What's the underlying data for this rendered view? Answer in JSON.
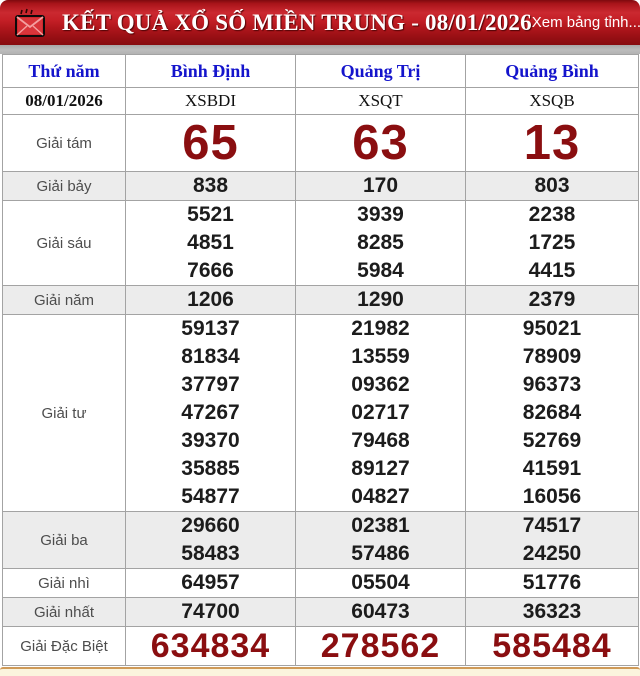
{
  "header": {
    "title": "KẾT QUẢ XỔ SỐ MIỀN TRUNG - 08/01/2026",
    "view_link_label": "Xem bảng tỉnh...",
    "icons": {
      "left": "mail-icon",
      "right": "bar-chart-icon"
    }
  },
  "table": {
    "day_label": "Thứ năm",
    "date": "08/01/2026",
    "provinces": [
      {
        "name": "Bình Định",
        "code": "XSBDI"
      },
      {
        "name": "Quảng Trị",
        "code": "XSQT"
      },
      {
        "name": "Quảng Bình",
        "code": "XSQB"
      }
    ],
    "prizes": [
      {
        "label": "Giải tám",
        "style": "big-red",
        "shaded": false,
        "values": [
          [
            "65"
          ],
          [
            "63"
          ],
          [
            "13"
          ]
        ]
      },
      {
        "label": "Giải bảy",
        "style": "",
        "shaded": true,
        "values": [
          [
            "838"
          ],
          [
            "170"
          ],
          [
            "803"
          ]
        ]
      },
      {
        "label": "Giải sáu",
        "style": "",
        "shaded": false,
        "values": [
          [
            "5521",
            "4851",
            "7666"
          ],
          [
            "3939",
            "8285",
            "5984"
          ],
          [
            "2238",
            "1725",
            "4415"
          ]
        ]
      },
      {
        "label": "Giải năm",
        "style": "",
        "shaded": true,
        "values": [
          [
            "1206"
          ],
          [
            "1290"
          ],
          [
            "2379"
          ]
        ]
      },
      {
        "label": "Giải tư",
        "style": "",
        "shaded": false,
        "values": [
          [
            "59137",
            "81834",
            "37797",
            "47267",
            "39370",
            "35885",
            "54877"
          ],
          [
            "21982",
            "13559",
            "09362",
            "02717",
            "79468",
            "89127",
            "04827"
          ],
          [
            "95021",
            "78909",
            "96373",
            "82684",
            "52769",
            "41591",
            "16056"
          ]
        ]
      },
      {
        "label": "Giải ba",
        "style": "",
        "shaded": true,
        "values": [
          [
            "29660",
            "58483"
          ],
          [
            "02381",
            "57486"
          ],
          [
            "74517",
            "24250"
          ]
        ]
      },
      {
        "label": "Giải nhì",
        "style": "",
        "shaded": false,
        "values": [
          [
            "64957"
          ],
          [
            "05504"
          ],
          [
            "51776"
          ]
        ]
      },
      {
        "label": "Giải nhất",
        "style": "",
        "shaded": true,
        "values": [
          [
            "74700"
          ],
          [
            "60473"
          ],
          [
            "36323"
          ]
        ]
      },
      {
        "label": "Giải Đặc Biệt",
        "style": "special-red",
        "shaded": false,
        "values": [
          [
            "634834"
          ],
          [
            "278562"
          ],
          [
            "585484"
          ]
        ]
      }
    ]
  },
  "colors": {
    "header_red": "#b4161c",
    "accent_maroon": "#8a0e10",
    "link_blue": "#1414cc",
    "shaded_row": "#ececec",
    "strip_cream": "#fbf4dd",
    "strip_border_tan": "#cf9a58"
  }
}
